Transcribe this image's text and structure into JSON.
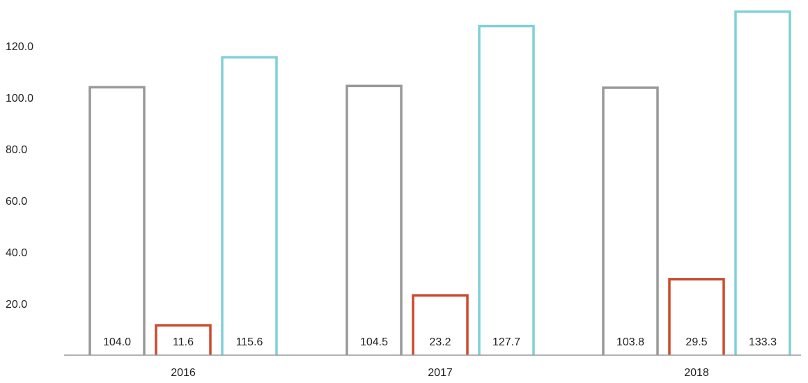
{
  "chart_data": {
    "type": "bar",
    "title": "",
    "xlabel": "",
    "ylabel": "",
    "categories": [
      "2016",
      "2017",
      "2018"
    ],
    "series": [
      {
        "values": [
          104.0,
          104.5,
          103.8
        ],
        "labels": [
          "104.0",
          "104.5",
          "103.8"
        ],
        "color": "#999999"
      },
      {
        "values": [
          11.6,
          23.2,
          29.5
        ],
        "labels": [
          "11.6",
          "23.2",
          "29.5"
        ],
        "color": "#cc4a2c"
      },
      {
        "values": [
          115.6,
          127.7,
          133.3
        ],
        "labels": [
          "115.6",
          "127.7",
          "133.3"
        ],
        "color": "#7fd0d8"
      }
    ],
    "yticks": [
      "20.0",
      "40.0",
      "60.0",
      "80.0",
      "100.0",
      "120.0"
    ],
    "ylim": [
      0,
      140
    ],
    "grid": false,
    "legend": "none",
    "bar_style": "outline"
  }
}
